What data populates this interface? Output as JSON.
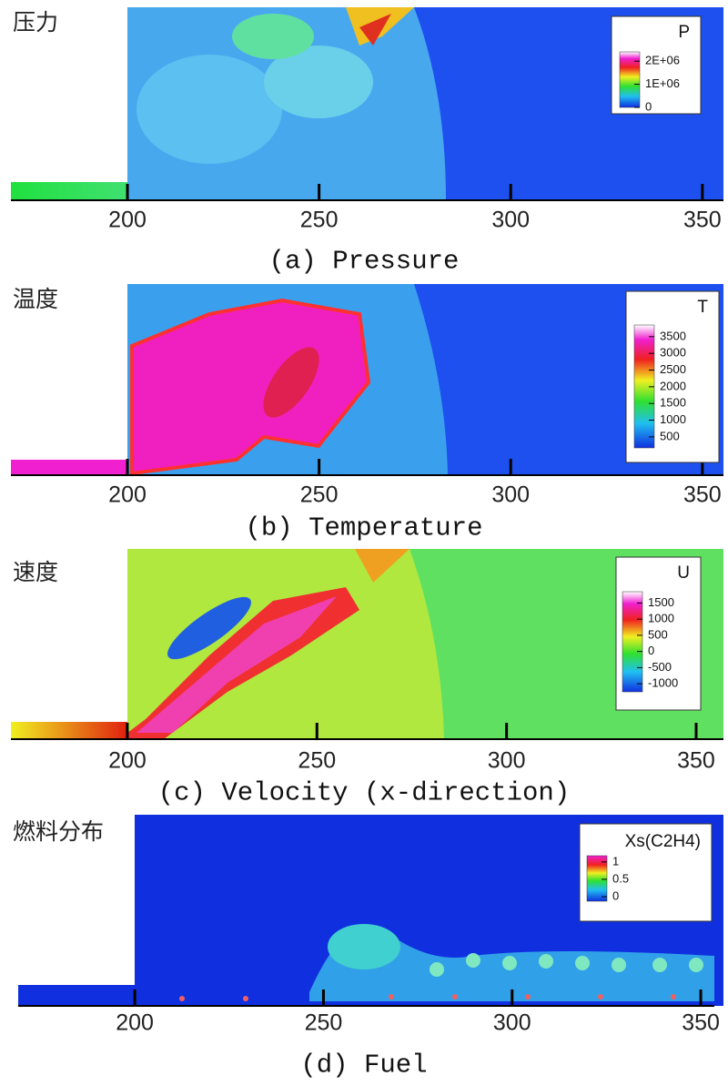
{
  "panels": [
    {
      "label": "压力",
      "caption": "(a) Pressure",
      "xlim": [
        169.6,
        355.5
      ],
      "xticks": [
        200,
        250,
        300,
        350
      ],
      "colorbar": {
        "title": "P",
        "clim": [
          0,
          2400000
        ],
        "ticks": [
          {
            "value": 2000000,
            "label": "2E+06"
          },
          {
            "value": 1000000,
            "label": "1E+06"
          },
          0
        ]
      }
    },
    {
      "label": "温度",
      "caption": "(b) Temperature",
      "xlim": [
        169.6,
        355.5
      ],
      "xticks": [
        200,
        250,
        300,
        350
      ],
      "colorbar": {
        "title": "T",
        "clim": [
          170,
          3850
        ],
        "ticks": [
          3500,
          3000,
          2500,
          2000,
          1500,
          1000,
          500
        ]
      }
    },
    {
      "label": "速度",
      "caption": "(c) Velocity (x-direction)",
      "xlim": [
        169.3,
        357.2
      ],
      "xticks": [
        200,
        250,
        300,
        350
      ],
      "colorbar": {
        "title": "U",
        "clim": [
          -1250,
          1850
        ],
        "ticks": [
          1500,
          1000,
          500,
          0,
          -500,
          -1000
        ]
      }
    },
    {
      "label": "燃料分布",
      "caption": "(d) Fuel",
      "xlim": [
        169.1,
        353.6
      ],
      "xticks": [
        200,
        250,
        300,
        350
      ],
      "colorbar": {
        "title": "Xs(C2H4)",
        "clim": [
          -0.13,
          1.18
        ],
        "ticks": [
          1,
          0.5,
          0
        ]
      }
    }
  ]
}
